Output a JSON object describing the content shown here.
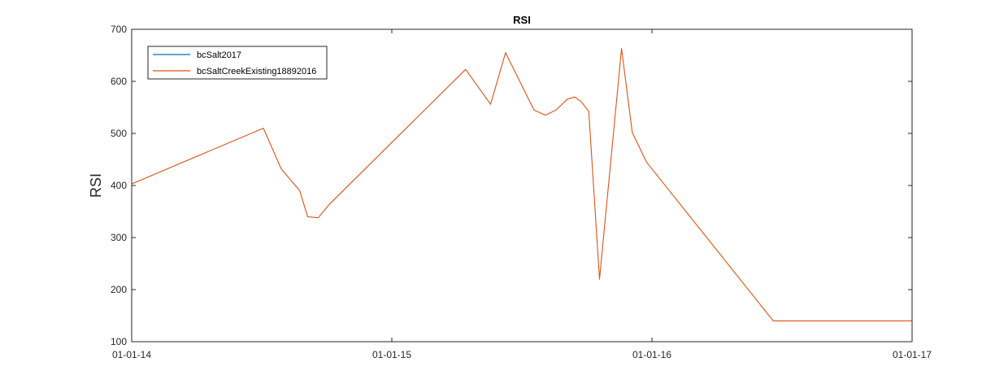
{
  "chart_data": {
    "type": "line",
    "title": "RSI",
    "xlabel": "",
    "ylabel": "RSI",
    "x_tick_labels": [
      "01-01-14",
      "01-01-15",
      "01-01-16",
      "01-01-17"
    ],
    "xlim": [
      "2014-01-01",
      "2017-01-01"
    ],
    "ylim": [
      100,
      700
    ],
    "y_ticks": [
      100,
      200,
      300,
      400,
      500,
      600,
      700
    ],
    "grid": false,
    "legend_position": "top-left",
    "series": [
      {
        "name": "bcSalt2017",
        "color": "#0072BD",
        "x": [],
        "y": []
      },
      {
        "name": "bcSaltCreekExisting18892016",
        "color": "#D95319",
        "x": [
          "2014-01-01",
          "2014-07-05",
          "2014-07-30",
          "2014-08-25",
          "2014-09-05",
          "2014-09-20",
          "2014-10-05",
          "2015-04-15",
          "2015-05-20",
          "2015-06-10",
          "2015-07-20",
          "2015-08-05",
          "2015-08-20",
          "2015-09-05",
          "2015-09-15",
          "2015-09-25",
          "2015-10-05",
          "2015-10-20",
          "2015-11-20",
          "2015-12-05",
          "2015-12-25",
          "2016-06-20",
          "2017-01-01"
        ],
        "y": [
          403,
          510,
          432,
          390,
          340,
          338,
          363,
          623,
          556,
          655,
          545,
          535,
          545,
          566,
          570,
          560,
          542,
          220,
          663,
          502,
          445,
          140,
          140
        ]
      }
    ]
  }
}
